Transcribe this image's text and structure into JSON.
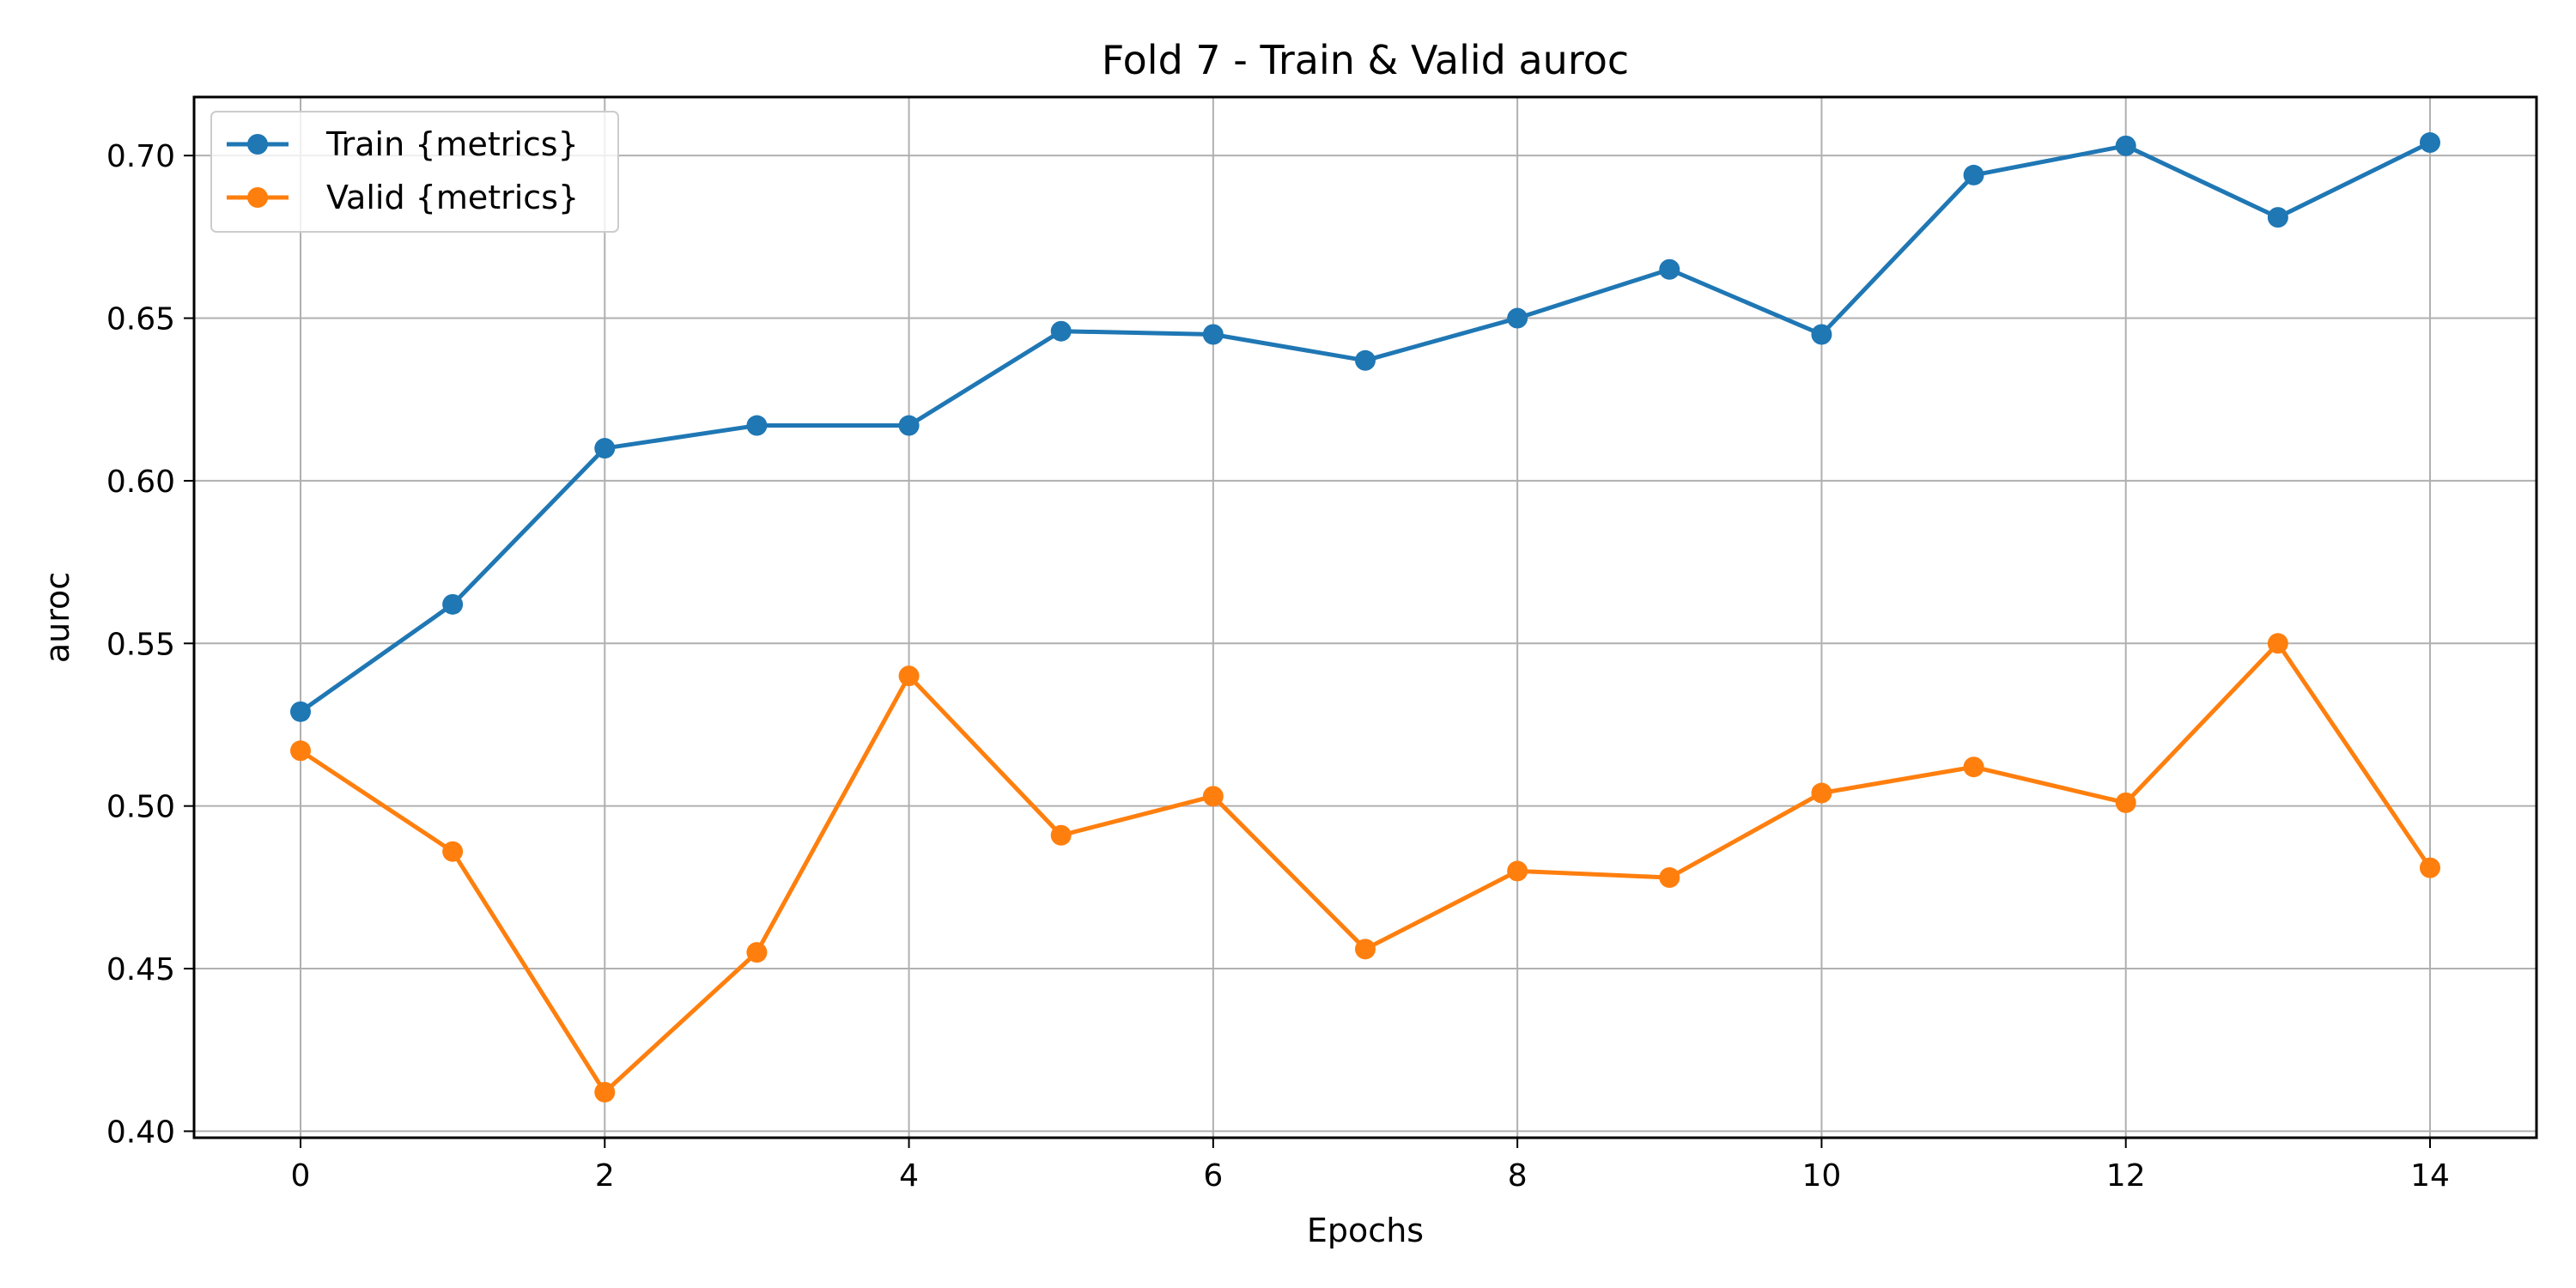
{
  "chart_data": {
    "type": "line",
    "title": "Fold 7 - Train & Valid auroc",
    "xlabel": "Epochs",
    "ylabel": "auroc",
    "x": [
      0,
      1,
      2,
      3,
      4,
      5,
      6,
      7,
      8,
      9,
      10,
      11,
      12,
      13,
      14
    ],
    "xlim": [
      -0.7,
      14.7
    ],
    "ylim": [
      0.398,
      0.718
    ],
    "xticks": [
      0,
      2,
      4,
      6,
      8,
      10,
      12,
      14
    ],
    "yticks": [
      0.4,
      0.45,
      0.5,
      0.55,
      0.6,
      0.65,
      0.7
    ],
    "grid": true,
    "legend_position": "upper-left",
    "series": [
      {
        "name": "Train {metrics}",
        "color": "#1f77b4",
        "marker": "circle",
        "values": [
          0.529,
          0.562,
          0.61,
          0.617,
          0.617,
          0.646,
          0.645,
          0.637,
          0.65,
          0.665,
          0.645,
          0.694,
          0.703,
          0.681,
          0.704
        ]
      },
      {
        "name": "Valid {metrics}",
        "color": "#ff7f0e",
        "marker": "circle",
        "values": [
          0.517,
          0.486,
          0.412,
          0.455,
          0.54,
          0.491,
          0.503,
          0.456,
          0.48,
          0.478,
          0.504,
          0.512,
          0.501,
          0.55,
          0.481
        ]
      }
    ]
  }
}
